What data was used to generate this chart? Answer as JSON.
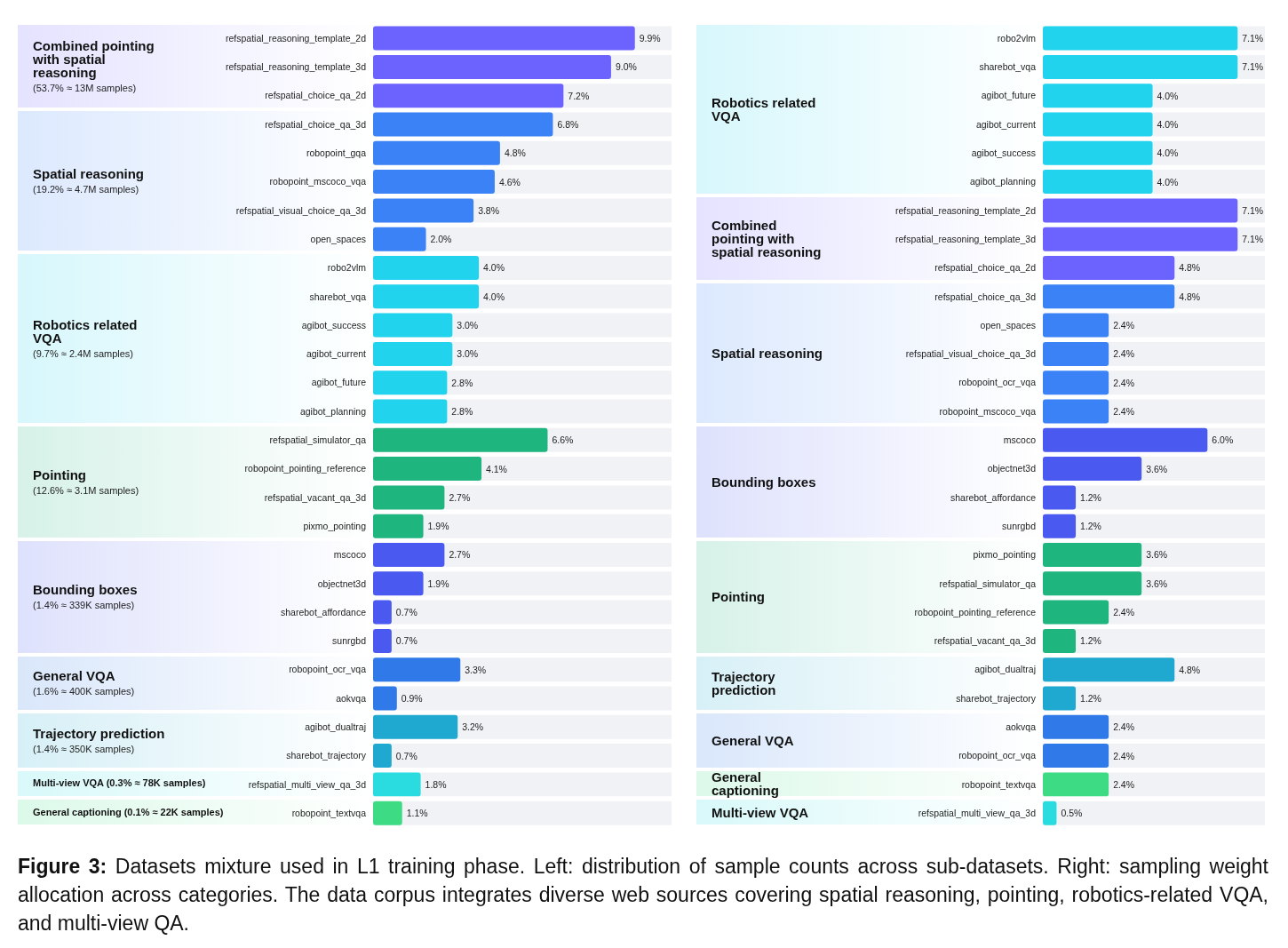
{
  "chart_data": [
    {
      "type": "bar",
      "orientation": "horizontal",
      "categories": [
        "refspatial_reasoning_template_2d",
        "refspatial_reasoning_template_3d",
        "refspatial_choice_qa_2d",
        "refspatial_choice_qa_3d",
        "robopoint_gqa",
        "robopoint_mscoco_vqa",
        "refspatial_visual_choice_qa_3d",
        "open_spaces",
        "robo2vlm",
        "sharebot_vqa",
        "agibot_success",
        "agibot_current",
        "agibot_future",
        "agibot_planning",
        "refspatial_simulator_qa",
        "robopoint_pointing_reference",
        "refspatial_vacant_qa_3d",
        "pixmo_pointing",
        "mscoco",
        "objectnet3d",
        "sharebot_affordance",
        "sunrgbd",
        "robopoint_ocr_vqa",
        "aokvqa",
        "agibot_dualtraj",
        "sharebot_trajectory",
        "refspatial_multi_view_qa_3d",
        "robopoint_textvqa"
      ],
      "values": [
        9.9,
        9.0,
        7.2,
        6.8,
        4.8,
        4.6,
        3.8,
        2.0,
        4.0,
        4.0,
        3.0,
        3.0,
        2.8,
        2.8,
        6.6,
        4.1,
        2.7,
        1.9,
        2.7,
        1.9,
        0.7,
        0.7,
        3.3,
        0.9,
        3.2,
        0.7,
        1.8,
        1.1
      ],
      "value_labels": [
        "9.9%",
        "9.0%",
        "7.2%",
        "6.8%",
        "4.8%",
        "4.6%",
        "3.8%",
        "2.0%",
        "4.0%",
        "4.0%",
        "3.0%",
        "3.0%",
        "2.8%",
        "2.8%",
        "6.6%",
        "4.1%",
        "2.7%",
        "1.9%",
        "2.7%",
        "1.9%",
        "0.7%",
        "0.7%",
        "3.3%",
        "0.9%",
        "3.2%",
        "0.7%",
        "1.8%",
        "1.1%"
      ],
      "colors": [
        "#6c63ff",
        "#6c63ff",
        "#6c63ff",
        "#3b82f6",
        "#3b82f6",
        "#3b82f6",
        "#3b82f6",
        "#3b82f6",
        "#22d3ee",
        "#22d3ee",
        "#22d3ee",
        "#22d3ee",
        "#22d3ee",
        "#22d3ee",
        "#1fb57f",
        "#1fb57f",
        "#1fb57f",
        "#1fb57f",
        "#4a5af0",
        "#4a5af0",
        "#4a5af0",
        "#4a5af0",
        "#2f7ae8",
        "#2f7ae8",
        "#1fa9d0",
        "#1fa9d0",
        "#2adbe0",
        "#3ddc84"
      ],
      "annotations": [
        "Combined pointing with spatial reasoning\n(53.7% ≈ 13M samples)",
        "Spatial reasoning\n(19.2% ≈ 4.7M samples)",
        "Robotics related VQA\n(9.7% ≈ 2.4M samples)",
        "Pointing\n(12.6% ≈ 3.1M samples)",
        "Bounding boxes\n(1.4% ≈ 339K samples)",
        "General VQA\n(1.6% ≈ 400K samples)",
        "Trajectory prediction\n(1.4% ≈ 350K samples)",
        "Multi-view VQA (0.3% ≈ 78K samples)",
        "General captioning (0.1% ≈ 22K samples)",
        "Figure 3: Datasets mixture used in L1 training phase. Left: distribution of sample counts across sub-datasets. Right: sampling weight allocation across categories.  The data corpus integrates diverse web sources covering spatial reasoning, pointing, robotics-related VQA, and multi-view QA."
      ]
    },
    {
      "type": "bar",
      "orientation": "horizontal",
      "categories": [
        "robo2vlm",
        "sharebot_vqa",
        "agibot_future",
        "agibot_current",
        "agibot_success",
        "agibot_planning",
        "refspatial_reasoning_template_2d",
        "refspatial_reasoning_template_3d",
        "refspatial_choice_qa_2d",
        "refspatial_choice_qa_3d",
        "open_spaces",
        "refspatial_visual_choice_qa_3d",
        "robopoint_ocr_vqa",
        "robopoint_mscoco_vqa",
        "mscoco",
        "objectnet3d",
        "sharebot_affordance",
        "sunrgbd",
        "pixmo_pointing",
        "refspatial_simulator_qa",
        "robopoint_pointing_reference",
        "refspatial_vacant_qa_3d",
        "agibot_dualtraj",
        "sharebot_trajectory",
        "aokvqa",
        "robopoint_ocr_vqa",
        "robopoint_textvqa",
        "refspatial_multi_view_qa_3d"
      ],
      "values": [
        7.1,
        7.1,
        4.0,
        4.0,
        4.0,
        4.0,
        7.1,
        7.1,
        4.8,
        4.8,
        2.4,
        2.4,
        2.4,
        2.4,
        6.0,
        3.6,
        1.2,
        1.2,
        3.6,
        3.6,
        2.4,
        1.2,
        4.8,
        1.2,
        2.4,
        2.4,
        2.4,
        0.5
      ],
      "value_labels": [
        "7.1%",
        "7.1%",
        "4.0%",
        "4.0%",
        "4.0%",
        "4.0%",
        "7.1%",
        "7.1%",
        "4.8%",
        "4.8%",
        "2.4%",
        "2.4%",
        "2.4%",
        "2.4%",
        "6.0%",
        "3.6%",
        "1.2%",
        "1.2%",
        "3.6%",
        "3.6%",
        "2.4%",
        "1.2%",
        "4.8%",
        "1.2%",
        "2.4%",
        "2.4%",
        "2.4%",
        "0.5%"
      ],
      "colors": [
        "#22d3ee",
        "#22d3ee",
        "#22d3ee",
        "#22d3ee",
        "#22d3ee",
        "#22d3ee",
        "#6c63ff",
        "#6c63ff",
        "#6c63ff",
        "#3b82f6",
        "#3b82f6",
        "#3b82f6",
        "#3b82f6",
        "#3b82f6",
        "#4a5af0",
        "#4a5af0",
        "#4a5af0",
        "#4a5af0",
        "#1fb57f",
        "#1fb57f",
        "#1fb57f",
        "#1fb57f",
        "#1fa9d0",
        "#1fa9d0",
        "#2f7ae8",
        "#2f7ae8",
        "#3ddc84",
        "#2adbe0"
      ],
      "annotations": [
        "Robotics related VQA",
        "Combined pointing with spatial reasoning",
        "Spatial reasoning",
        "Bounding boxes",
        "Pointing",
        "Trajectory prediction",
        "General VQA",
        "General captioning",
        "Multi-view VQA"
      ]
    }
  ]
}
